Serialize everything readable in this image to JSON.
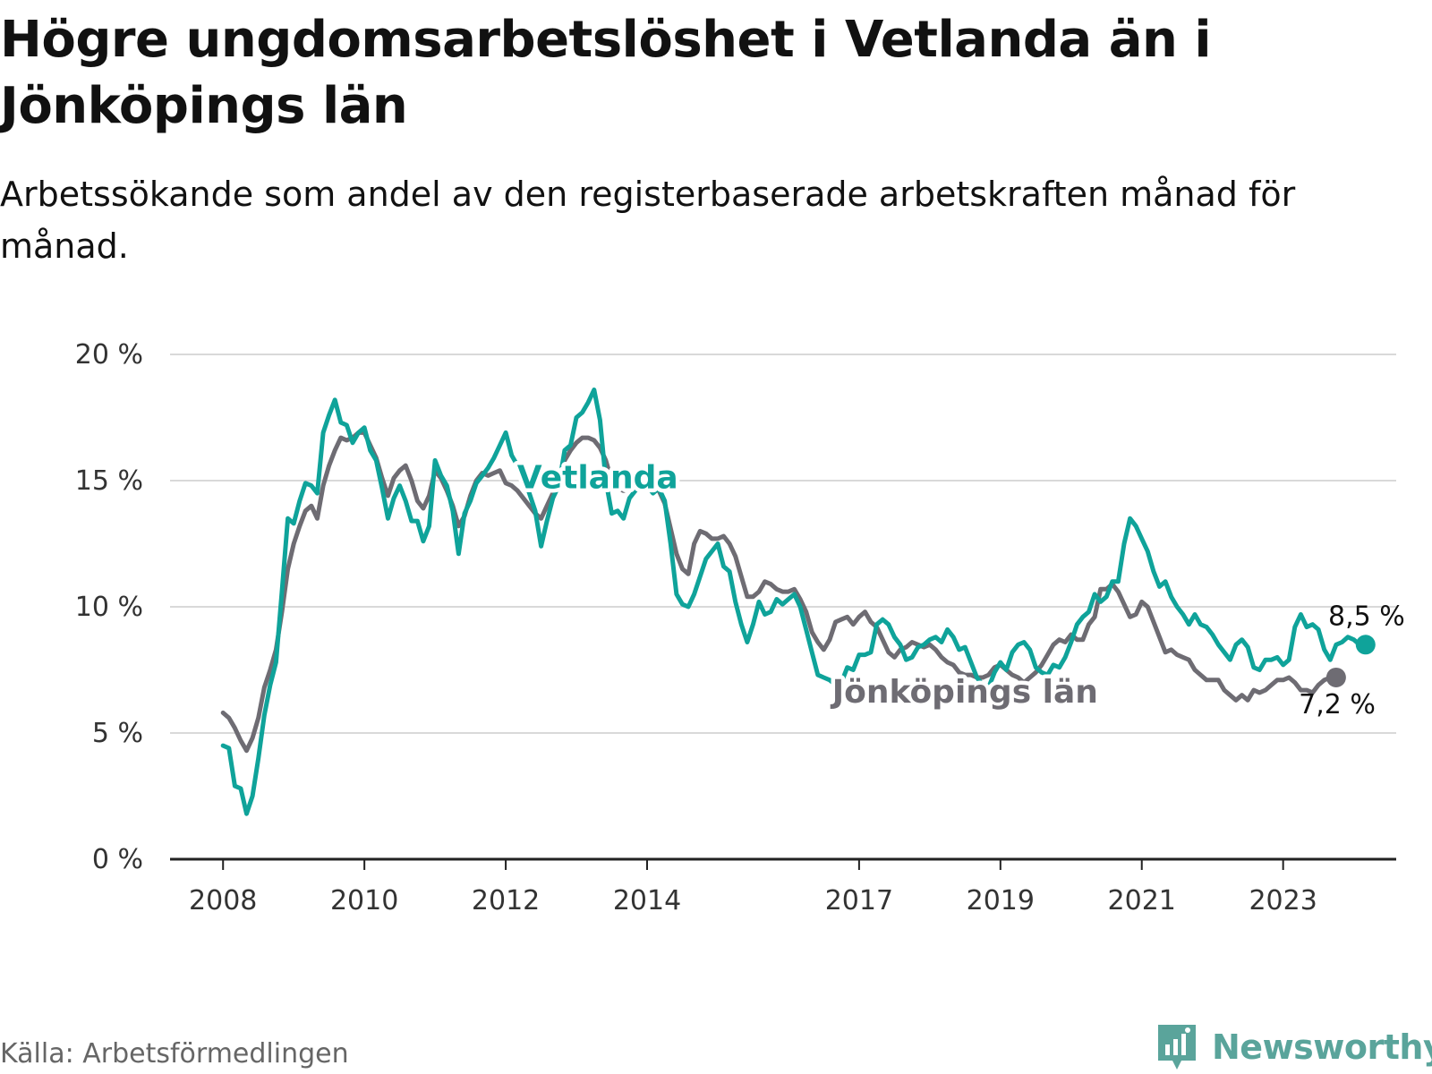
{
  "header": {
    "title": "Högre ungdomsarbetslöshet i Vetlanda än i Jönköpings län",
    "subtitle": "Arbetssökande som andel av den registerbaserade arbetskraften månad för månad."
  },
  "footer": {
    "source": "Källa: Arbetsförmedlingen",
    "brand": "Newsworthy"
  },
  "colors": {
    "vetlanda": "#0fa39a",
    "jonkoping": "#6e6c73",
    "grid": "#d9d9d9",
    "axis": "#222222",
    "brand": "#5aa49b"
  },
  "chart_data": {
    "type": "line",
    "title": "Högre ungdomsarbetslöshet i Vetlanda än i Jönköpings län",
    "xlabel": "",
    "ylabel": "",
    "x_start": 2008.0,
    "x_step": 0.0833333,
    "xlim": [
      2007.25,
      2024.6
    ],
    "ylim": [
      0,
      20
    ],
    "y_ticks": [
      0,
      5,
      10,
      15,
      20
    ],
    "y_tick_labels": [
      "0 %",
      "5 %",
      "10 %",
      "15 %",
      "20 %"
    ],
    "x_ticks": [
      2008,
      2010,
      2012,
      2014,
      2017,
      2019,
      2021,
      2023
    ],
    "x_tick_labels": [
      "2008",
      "2010",
      "2012",
      "2014",
      "2017",
      "2019",
      "2021",
      "2023"
    ],
    "grid": true,
    "series": [
      {
        "name": "Vetlanda",
        "label": "Vetlanda",
        "end_label": "8,5 %",
        "values": [
          4.5,
          4.4,
          2.9,
          2.8,
          1.8,
          2.5,
          4.0,
          5.7,
          6.9,
          7.8,
          10.6,
          13.5,
          13.3,
          14.2,
          14.9,
          14.8,
          14.5,
          16.9,
          17.6,
          18.2,
          17.3,
          17.2,
          16.5,
          16.9,
          17.1,
          16.2,
          15.8,
          14.7,
          13.5,
          14.3,
          14.8,
          14.2,
          13.4,
          13.4,
          12.6,
          13.2,
          15.8,
          15.2,
          14.8,
          13.8,
          12.1,
          13.7,
          14.2,
          14.9,
          15.2,
          15.5,
          15.9,
          16.4,
          16.9,
          16.0,
          15.6,
          15.2,
          14.5,
          13.8,
          12.4,
          13.4,
          14.3,
          14.8,
          16.2,
          16.4,
          17.5,
          17.7,
          18.1,
          18.6,
          17.4,
          15.0,
          13.7,
          13.8,
          13.5,
          14.3,
          14.6,
          14.8,
          14.8,
          14.5,
          14.7,
          14.2,
          12.5,
          10.5,
          10.1,
          10.0,
          10.5,
          11.2,
          11.9,
          12.2,
          12.5,
          11.6,
          11.4,
          10.2,
          9.3,
          8.6,
          9.3,
          10.2,
          9.7,
          9.8,
          10.3,
          10.1,
          10.3,
          10.5,
          10.0,
          9.1,
          8.2,
          7.3,
          7.2,
          7.1,
          6.9,
          7.0,
          7.6,
          7.5,
          8.1,
          8.1,
          8.2,
          9.3,
          9.5,
          9.3,
          8.8,
          8.5,
          7.9,
          8.0,
          8.4,
          8.5,
          8.7,
          8.8,
          8.6,
          9.1,
          8.8,
          8.3,
          8.4,
          7.8,
          7.2,
          6.9,
          6.8,
          7.4,
          7.8,
          7.5,
          8.2,
          8.5,
          8.6,
          8.3,
          7.6,
          7.4,
          7.3,
          7.7,
          7.6,
          8.0,
          8.6,
          9.3,
          9.6,
          9.8,
          10.5,
          10.2,
          10.4,
          11.0,
          11.0,
          12.5,
          13.5,
          13.2,
          12.7,
          12.2,
          11.4,
          10.8,
          11.0,
          10.4,
          10.0,
          9.7,
          9.3,
          9.7,
          9.3,
          9.2,
          8.9,
          8.5,
          8.2,
          7.9,
          8.5,
          8.7,
          8.4,
          7.6,
          7.5,
          7.9,
          7.9,
          8.0,
          7.7,
          7.9,
          9.2,
          9.7,
          9.2,
          9.3,
          9.1,
          8.3,
          7.9,
          8.5,
          8.6,
          8.8,
          8.7,
          8.5,
          8.5
        ]
      },
      {
        "name": "Jönköpings län",
        "label": "Jönköpings län",
        "end_label": "7,2 %",
        "values": [
          5.8,
          5.6,
          5.2,
          4.7,
          4.3,
          4.8,
          5.6,
          6.8,
          7.5,
          8.3,
          9.8,
          11.5,
          12.5,
          13.2,
          13.8,
          14.0,
          13.5,
          14.8,
          15.6,
          16.2,
          16.7,
          16.6,
          16.7,
          16.9,
          16.9,
          16.4,
          15.9,
          15.1,
          14.4,
          15.1,
          15.4,
          15.6,
          15.0,
          14.2,
          13.9,
          14.4,
          15.4,
          15.1,
          14.6,
          14.0,
          13.2,
          13.6,
          14.4,
          15.0,
          15.3,
          15.2,
          15.3,
          15.4,
          14.9,
          14.8,
          14.6,
          14.3,
          14.0,
          13.7,
          13.5,
          14.0,
          14.5,
          15.1,
          15.8,
          16.2,
          16.5,
          16.7,
          16.7,
          16.6,
          16.3,
          15.8,
          15.0,
          14.7,
          14.6,
          14.7,
          14.8,
          14.8,
          14.8,
          14.8,
          14.6,
          14.1,
          13.1,
          12.1,
          11.5,
          11.3,
          12.5,
          13.0,
          12.9,
          12.7,
          12.7,
          12.8,
          12.5,
          12.0,
          11.2,
          10.4,
          10.4,
          10.6,
          11.0,
          10.9,
          10.7,
          10.6,
          10.6,
          10.7,
          10.3,
          9.8,
          9.0,
          8.6,
          8.3,
          8.7,
          9.4,
          9.5,
          9.6,
          9.3,
          9.6,
          9.8,
          9.4,
          9.2,
          8.7,
          8.2,
          8.0,
          8.3,
          8.4,
          8.6,
          8.5,
          8.4,
          8.5,
          8.3,
          8.0,
          7.8,
          7.7,
          7.4,
          7.3,
          7.3,
          7.2,
          7.2,
          7.3,
          7.6,
          7.7,
          7.5,
          7.3,
          7.2,
          7.0,
          7.2,
          7.4,
          7.7,
          8.1,
          8.5,
          8.7,
          8.6,
          8.9,
          8.7,
          8.7,
          9.3,
          9.6,
          10.7,
          10.7,
          10.9,
          10.6,
          10.1,
          9.6,
          9.7,
          10.2,
          10.0,
          9.4,
          8.8,
          8.2,
          8.3,
          8.1,
          8.0,
          7.9,
          7.5,
          7.3,
          7.1,
          7.1,
          7.1,
          6.7,
          6.5,
          6.3,
          6.5,
          6.3,
          6.7,
          6.6,
          6.7,
          6.9,
          7.1,
          7.1,
          7.2,
          7.0,
          6.7,
          6.7,
          6.6,
          6.9,
          7.1,
          7.2,
          7.2
        ]
      }
    ]
  }
}
